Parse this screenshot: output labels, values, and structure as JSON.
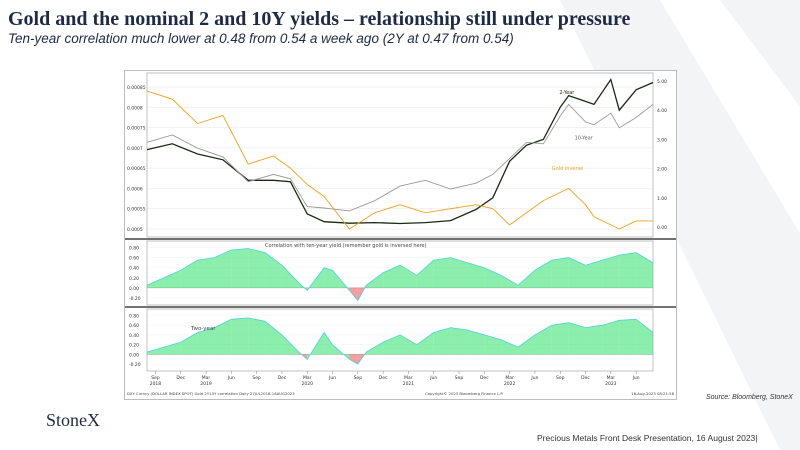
{
  "slide": {
    "title": "Gold and the nominal 2 and 10Y yields – relationship still under pressure",
    "subtitle": "Ten-year correlation much lower at 0.48 from 0.54 a week ago (2Y at 0.47 from 0.54)",
    "source": "Source: Bloomberg, StoneX",
    "logo": "StoneX",
    "footer": "Precious Metals Front Desk Presentation, 16 August 2023|"
  },
  "chart_data": [
    {
      "type": "line",
      "panel": "top",
      "left_axis": {
        "ticks": [
          "0.0005",
          "0.00055",
          "0.0006",
          "0.00065",
          "0.0007",
          "0.00075",
          "0.0008",
          "0.00085"
        ]
      },
      "right_axis": {
        "ticks": [
          "0.00",
          "1.00",
          "2.00",
          "3.00",
          "4.00",
          "5.00"
        ]
      },
      "x_range": [
        "2018-08",
        "2023-08"
      ],
      "series": [
        {
          "name": "2-Year",
          "color": "#1a2a12",
          "axis": "right",
          "x": [
            "2018-08",
            "2018-11",
            "2019-02",
            "2019-05",
            "2019-08",
            "2019-11",
            "2020-01",
            "2020-03",
            "2020-05",
            "2020-08",
            "2020-11",
            "2021-02",
            "2021-05",
            "2021-08",
            "2021-11",
            "2022-01",
            "2022-03",
            "2022-05",
            "2022-07",
            "2022-09",
            "2022-10",
            "2022-12",
            "2023-01",
            "2023-03",
            "2023-04",
            "2023-06",
            "2023-08"
          ],
          "y": [
            2.65,
            2.85,
            2.5,
            2.3,
            1.6,
            1.6,
            1.55,
            0.45,
            0.18,
            0.13,
            0.15,
            0.12,
            0.15,
            0.22,
            0.6,
            1.0,
            2.25,
            2.8,
            3.0,
            4.1,
            4.5,
            4.3,
            4.2,
            5.05,
            4.0,
            4.7,
            4.95
          ]
        },
        {
          "name": "10-Year",
          "color": "#9a9a9a",
          "axis": "right",
          "x": [
            "2018-08",
            "2018-11",
            "2019-02",
            "2019-05",
            "2019-08",
            "2019-11",
            "2020-01",
            "2020-03",
            "2020-05",
            "2020-08",
            "2020-11",
            "2021-02",
            "2021-05",
            "2021-08",
            "2021-11",
            "2022-01",
            "2022-03",
            "2022-05",
            "2022-07",
            "2022-09",
            "2022-10",
            "2022-12",
            "2023-01",
            "2023-03",
            "2023-04",
            "2023-06",
            "2023-08"
          ],
          "y": [
            2.9,
            3.15,
            2.7,
            2.4,
            1.55,
            1.8,
            1.65,
            0.7,
            0.65,
            0.55,
            0.9,
            1.4,
            1.6,
            1.3,
            1.5,
            1.8,
            2.35,
            2.9,
            2.85,
            3.8,
            4.2,
            3.6,
            3.5,
            3.9,
            3.4,
            3.75,
            4.2
          ]
        },
        {
          "name": "Gold inverse",
          "color": "#f0a020",
          "axis": "left",
          "x": [
            "2018-08",
            "2018-11",
            "2019-02",
            "2019-05",
            "2019-08",
            "2019-11",
            "2020-01",
            "2020-03",
            "2020-05",
            "2020-08",
            "2020-11",
            "2021-02",
            "2021-05",
            "2021-08",
            "2021-11",
            "2022-01",
            "2022-03",
            "2022-05",
            "2022-07",
            "2022-09",
            "2022-10",
            "2022-12",
            "2023-01",
            "2023-03",
            "2023-04",
            "2023-06",
            "2023-08"
          ],
          "y": [
            0.00084,
            0.00082,
            0.00076,
            0.00078,
            0.00066,
            0.00068,
            0.00065,
            0.00061,
            0.00058,
            0.0005,
            0.00054,
            0.00056,
            0.00054,
            0.00055,
            0.00056,
            0.00055,
            0.00051,
            0.00054,
            0.00057,
            0.00059,
            0.0006,
            0.00056,
            0.00053,
            0.00051,
            0.0005,
            0.00052,
            0.00052
          ]
        }
      ]
    },
    {
      "type": "area",
      "panel": "middle",
      "title": "Correlation with ten-year yield (remember gold is inversed here)",
      "y_ticks": [
        "0.80",
        "0.60",
        "0.40",
        "0.20",
        "0.00",
        "-0.20"
      ],
      "ylim": [
        -0.3,
        0.85
      ],
      "x": [
        "2018-08",
        "2018-10",
        "2018-12",
        "2019-02",
        "2019-04",
        "2019-06",
        "2019-08",
        "2019-10",
        "2019-12",
        "2020-02",
        "2020-03",
        "2020-05",
        "2020-06",
        "2020-08",
        "2020-09",
        "2020-10",
        "2020-12",
        "2021-02",
        "2021-04",
        "2021-06",
        "2021-08",
        "2021-10",
        "2021-12",
        "2022-02",
        "2022-04",
        "2022-06",
        "2022-08",
        "2022-10",
        "2022-12",
        "2023-02",
        "2023-04",
        "2023-06",
        "2023-08"
      ],
      "values": [
        0.05,
        0.2,
        0.35,
        0.55,
        0.6,
        0.75,
        0.78,
        0.7,
        0.45,
        0.1,
        -0.05,
        0.4,
        0.35,
        -0.05,
        -0.25,
        0.05,
        0.3,
        0.45,
        0.25,
        0.55,
        0.6,
        0.5,
        0.4,
        0.25,
        0.05,
        0.35,
        0.55,
        0.6,
        0.45,
        0.55,
        0.65,
        0.7,
        0.5
      ],
      "colors": {
        "positive": "#2ee06a",
        "negative": "#e85050",
        "edge": "#4fd0e0"
      }
    },
    {
      "type": "area",
      "panel": "bottom",
      "title": "Two-year",
      "y_ticks": [
        "0.80",
        "0.60",
        "0.40",
        "0.20",
        "0.00",
        "-0.20"
      ],
      "ylim": [
        -0.3,
        0.85
      ],
      "x_tick_labels": [
        "Sep",
        "Dec",
        "Mar",
        "Jun",
        "Sep",
        "Dec",
        "Mar",
        "Jun",
        "Sep",
        "Dec",
        "Mar",
        "Jun",
        "Sep",
        "Dec",
        "Mar",
        "Jun",
        "Sep",
        "Dec",
        "Mar",
        "Jun"
      ],
      "x_year_labels": [
        "2018",
        "2019",
        "2020",
        "2021",
        "2022",
        "2023"
      ],
      "x": [
        "2018-08",
        "2018-10",
        "2018-12",
        "2019-02",
        "2019-04",
        "2019-06",
        "2019-08",
        "2019-10",
        "2019-12",
        "2020-02",
        "2020-03",
        "2020-05",
        "2020-06",
        "2020-08",
        "2020-09",
        "2020-10",
        "2020-12",
        "2021-02",
        "2021-04",
        "2021-06",
        "2021-08",
        "2021-10",
        "2021-12",
        "2022-02",
        "2022-04",
        "2022-06",
        "2022-08",
        "2022-10",
        "2022-12",
        "2023-02",
        "2023-04",
        "2023-06",
        "2023-08"
      ],
      "values": [
        0.05,
        0.15,
        0.25,
        0.45,
        0.55,
        0.72,
        0.75,
        0.68,
        0.4,
        0.05,
        -0.1,
        0.45,
        0.2,
        -0.1,
        -0.2,
        0.05,
        0.25,
        0.4,
        0.2,
        0.45,
        0.55,
        0.5,
        0.4,
        0.3,
        0.15,
        0.4,
        0.6,
        0.65,
        0.55,
        0.6,
        0.7,
        0.72,
        0.45
      ],
      "colors": {
        "positive": "#2ee06a",
        "negative": "#e85050",
        "edge": "#4fd0e0"
      }
    }
  ],
  "chart_footer": {
    "left": "DXY Curncy (DOLLAR INDEX SPOT) Gold 2Y10Y correlation  Daily 27JUL2018-16AUG2023",
    "center": "Copyright© 2023 Bloomberg Finance L.P.",
    "right": "16-Aug-2023 08:21:58"
  }
}
